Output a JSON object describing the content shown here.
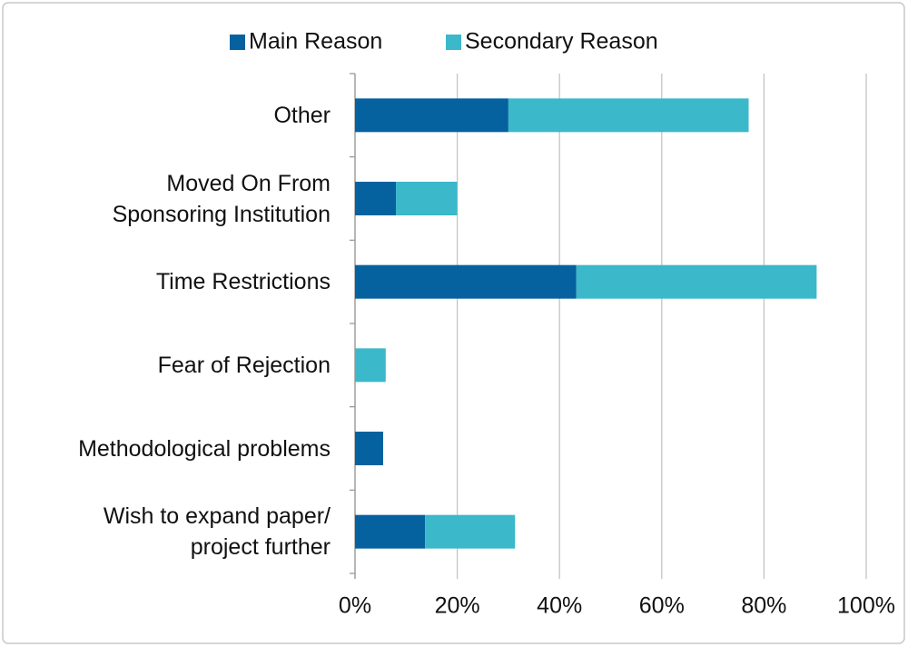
{
  "chart_data": {
    "type": "stacked_barh",
    "categories": [
      "Other",
      "Moved On From\nSponsoring Institution",
      "Time Restrictions",
      "Fear of Rejection",
      "Methodological problems",
      "Wish to expand paper/\nproject further"
    ],
    "series": [
      {
        "name": "Main Reason",
        "color": "#05629f",
        "values": [
          30,
          8,
          43.3,
          0,
          5.5,
          13.7
        ]
      },
      {
        "name": "Secondary Reason",
        "color": "#3bb8ca",
        "values": [
          47,
          12,
          47,
          6,
          0,
          17.6
        ]
      }
    ],
    "xlim": [
      0,
      100
    ],
    "xticks": [
      {
        "value": 0,
        "label": "0%"
      },
      {
        "value": 20,
        "label": "20%"
      },
      {
        "value": 40,
        "label": "40%"
      },
      {
        "value": 60,
        "label": "60%"
      },
      {
        "value": 80,
        "label": "80%"
      },
      {
        "value": 100,
        "label": "100%"
      }
    ],
    "grid": true,
    "legend": "top"
  }
}
